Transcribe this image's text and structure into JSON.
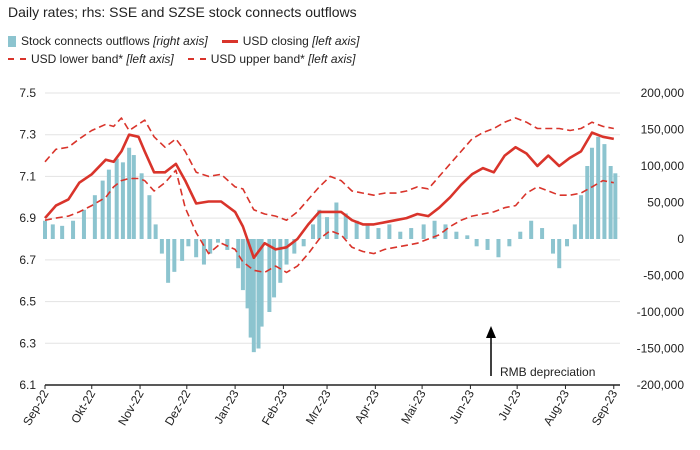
{
  "title": "Daily rates; rhs: SSE and SZSE stock connects outflows",
  "legend": {
    "bars": {
      "label": "Stock connects outflows",
      "note": "[right axis]"
    },
    "close": {
      "label": "USD closing",
      "note": "[left axis]"
    },
    "lower": {
      "label": "USD lower band*",
      "note": "[left axis]"
    },
    "upper": {
      "label": "USD upper band*",
      "note": "[left axis]"
    }
  },
  "annotation": "RMB depreciation",
  "chart_data": {
    "type": "line",
    "x_type": "date",
    "colors": {
      "bars": "#8cc4cf",
      "lines": "#d9342b"
    },
    "x_ticks": [
      {
        "label": "Sep-22",
        "date": "2022-09-01"
      },
      {
        "label": "Okt-22",
        "date": "2022-10-01"
      },
      {
        "label": "Nov-22",
        "date": "2022-11-01"
      },
      {
        "label": "Dez-22",
        "date": "2022-12-01"
      },
      {
        "label": "Jan-23",
        "date": "2023-01-01"
      },
      {
        "label": "Feb-23",
        "date": "2023-02-01"
      },
      {
        "label": "Mrz-23",
        "date": "2023-03-01"
      },
      {
        "label": "Apr-23",
        "date": "2023-04-01"
      },
      {
        "label": "Mai-23",
        "date": "2023-05-01"
      },
      {
        "label": "Jun-23",
        "date": "2023-06-01"
      },
      {
        "label": "Jul-23",
        "date": "2023-07-01"
      },
      {
        "label": "Aug-23",
        "date": "2023-08-01"
      },
      {
        "label": "Sep-23",
        "date": "2023-09-01"
      }
    ],
    "x_range": [
      "2022-09-01",
      "2023-09-05"
    ],
    "left_axis": {
      "min": 6.1,
      "max": 7.5,
      "ticks": [
        7.5,
        7.3,
        7.1,
        6.9,
        6.7,
        6.5,
        6.3,
        6.1
      ]
    },
    "right_axis": {
      "min": -200000,
      "max": 200000,
      "ticks": [
        200000,
        150000,
        100000,
        50000,
        0,
        -50000,
        -100000,
        -150000,
        -200000
      ],
      "tick_labels": [
        "200,000",
        "150,000",
        "100,000",
        "50,000",
        "0",
        "-50,000",
        "-100,000",
        "-150,000",
        "-200,000"
      ]
    },
    "grid": "horizontal",
    "series": [
      {
        "name": "USD closing",
        "axis": "left",
        "style": "solid",
        "points": [
          [
            "2022-09-01",
            6.9
          ],
          [
            "2022-09-08",
            6.96
          ],
          [
            "2022-09-16",
            6.99
          ],
          [
            "2022-09-23",
            7.07
          ],
          [
            "2022-10-01",
            7.11
          ],
          [
            "2022-10-10",
            7.18
          ],
          [
            "2022-10-15",
            7.17
          ],
          [
            "2022-10-20",
            7.22
          ],
          [
            "2022-10-25",
            7.3
          ],
          [
            "2022-10-31",
            7.29
          ],
          [
            "2022-11-04",
            7.22
          ],
          [
            "2022-11-10",
            7.12
          ],
          [
            "2022-11-17",
            7.12
          ],
          [
            "2022-11-24",
            7.16
          ],
          [
            "2022-11-30",
            7.08
          ],
          [
            "2022-12-07",
            6.97
          ],
          [
            "2022-12-15",
            6.98
          ],
          [
            "2022-12-23",
            6.98
          ],
          [
            "2023-01-01",
            6.93
          ],
          [
            "2023-01-06",
            6.86
          ],
          [
            "2023-01-13",
            6.71
          ],
          [
            "2023-01-20",
            6.78
          ],
          [
            "2023-01-27",
            6.75
          ],
          [
            "2023-02-03",
            6.76
          ],
          [
            "2023-02-10",
            6.8
          ],
          [
            "2023-02-17",
            6.87
          ],
          [
            "2023-02-24",
            6.93
          ],
          [
            "2023-03-03",
            6.93
          ],
          [
            "2023-03-10",
            6.93
          ],
          [
            "2023-03-17",
            6.89
          ],
          [
            "2023-03-24",
            6.87
          ],
          [
            "2023-03-31",
            6.87
          ],
          [
            "2023-04-07",
            6.88
          ],
          [
            "2023-04-14",
            6.89
          ],
          [
            "2023-04-21",
            6.9
          ],
          [
            "2023-04-28",
            6.92
          ],
          [
            "2023-05-05",
            6.91
          ],
          [
            "2023-05-12",
            6.95
          ],
          [
            "2023-05-19",
            7.0
          ],
          [
            "2023-05-26",
            7.06
          ],
          [
            "2023-06-02",
            7.11
          ],
          [
            "2023-06-09",
            7.14
          ],
          [
            "2023-06-16",
            7.12
          ],
          [
            "2023-06-23",
            7.2
          ],
          [
            "2023-06-30",
            7.24
          ],
          [
            "2023-07-07",
            7.21
          ],
          [
            "2023-07-14",
            7.15
          ],
          [
            "2023-07-21",
            7.2
          ],
          [
            "2023-07-28",
            7.15
          ],
          [
            "2023-08-04",
            7.19
          ],
          [
            "2023-08-11",
            7.22
          ],
          [
            "2023-08-18",
            7.31
          ],
          [
            "2023-08-25",
            7.29
          ],
          [
            "2023-09-01",
            7.28
          ]
        ]
      },
      {
        "name": "USD lower band*",
        "axis": "left",
        "style": "dashed",
        "points": [
          [
            "2022-09-01",
            7.17
          ],
          [
            "2022-09-08",
            7.23
          ],
          [
            "2022-09-16",
            7.24
          ],
          [
            "2022-09-23",
            7.28
          ],
          [
            "2022-10-01",
            7.32
          ],
          [
            "2022-10-10",
            7.35
          ],
          [
            "2022-10-15",
            7.34
          ],
          [
            "2022-10-20",
            7.38
          ],
          [
            "2022-10-25",
            7.32
          ],
          [
            "2022-10-31",
            7.35
          ],
          [
            "2022-11-04",
            7.37
          ],
          [
            "2022-11-10",
            7.29
          ],
          [
            "2022-11-17",
            7.24
          ],
          [
            "2022-11-24",
            7.28
          ],
          [
            "2022-11-30",
            7.22
          ],
          [
            "2022-12-07",
            7.12
          ],
          [
            "2022-12-15",
            7.1
          ],
          [
            "2022-12-23",
            7.11
          ],
          [
            "2023-01-01",
            7.05
          ],
          [
            "2023-01-06",
            7.04
          ],
          [
            "2023-01-13",
            6.94
          ],
          [
            "2023-01-20",
            6.92
          ],
          [
            "2023-01-27",
            6.91
          ],
          [
            "2023-02-03",
            6.89
          ],
          [
            "2023-02-10",
            6.93
          ],
          [
            "2023-02-17",
            6.99
          ],
          [
            "2023-02-24",
            7.05
          ],
          [
            "2023-03-03",
            7.1
          ],
          [
            "2023-03-10",
            7.08
          ],
          [
            "2023-03-17",
            7.03
          ],
          [
            "2023-03-24",
            7.02
          ],
          [
            "2023-03-31",
            7.01
          ],
          [
            "2023-04-07",
            7.02
          ],
          [
            "2023-04-14",
            7.02
          ],
          [
            "2023-04-21",
            7.03
          ],
          [
            "2023-04-28",
            7.05
          ],
          [
            "2023-05-05",
            7.04
          ],
          [
            "2023-05-12",
            7.1
          ],
          [
            "2023-05-19",
            7.16
          ],
          [
            "2023-05-26",
            7.22
          ],
          [
            "2023-06-02",
            7.28
          ],
          [
            "2023-06-09",
            7.31
          ],
          [
            "2023-06-16",
            7.33
          ],
          [
            "2023-06-23",
            7.36
          ],
          [
            "2023-06-30",
            7.38
          ],
          [
            "2023-07-07",
            7.36
          ],
          [
            "2023-07-14",
            7.33
          ],
          [
            "2023-07-21",
            7.33
          ],
          [
            "2023-07-28",
            7.33
          ],
          [
            "2023-08-04",
            7.32
          ],
          [
            "2023-08-11",
            7.33
          ],
          [
            "2023-08-18",
            7.36
          ],
          [
            "2023-08-25",
            7.34
          ],
          [
            "2023-09-01",
            7.33
          ]
        ]
      },
      {
        "name": "USD upper band*",
        "axis": "left",
        "style": "dashed",
        "points": [
          [
            "2022-09-01",
            6.89
          ],
          [
            "2022-09-08",
            6.9
          ],
          [
            "2022-09-16",
            6.91
          ],
          [
            "2022-09-23",
            6.93
          ],
          [
            "2022-10-01",
            6.96
          ],
          [
            "2022-10-10",
            7.0
          ],
          [
            "2022-10-15",
            7.05
          ],
          [
            "2022-10-20",
            7.08
          ],
          [
            "2022-10-25",
            7.09
          ],
          [
            "2022-10-31",
            7.09
          ],
          [
            "2022-11-04",
            7.08
          ],
          [
            "2022-11-10",
            7.03
          ],
          [
            "2022-11-17",
            7.07
          ],
          [
            "2022-11-24",
            7.13
          ],
          [
            "2022-11-30",
            6.95
          ],
          [
            "2022-12-07",
            6.83
          ],
          [
            "2022-12-15",
            6.73
          ],
          [
            "2022-12-23",
            6.78
          ],
          [
            "2023-01-01",
            6.75
          ],
          [
            "2023-01-06",
            6.69
          ],
          [
            "2023-01-13",
            6.65
          ],
          [
            "2023-01-20",
            6.64
          ],
          [
            "2023-01-27",
            6.67
          ],
          [
            "2023-02-03",
            6.64
          ],
          [
            "2023-02-10",
            6.67
          ],
          [
            "2023-02-17",
            6.73
          ],
          [
            "2023-02-24",
            6.8
          ],
          [
            "2023-03-03",
            6.84
          ],
          [
            "2023-03-10",
            6.82
          ],
          [
            "2023-03-17",
            6.76
          ],
          [
            "2023-03-24",
            6.74
          ],
          [
            "2023-03-31",
            6.73
          ],
          [
            "2023-04-07",
            6.75
          ],
          [
            "2023-04-14",
            6.76
          ],
          [
            "2023-04-21",
            6.77
          ],
          [
            "2023-04-28",
            6.78
          ],
          [
            "2023-05-05",
            6.8
          ],
          [
            "2023-05-12",
            6.82
          ],
          [
            "2023-05-19",
            6.86
          ],
          [
            "2023-05-26",
            6.89
          ],
          [
            "2023-06-02",
            6.91
          ],
          [
            "2023-06-09",
            6.92
          ],
          [
            "2023-06-16",
            6.93
          ],
          [
            "2023-06-23",
            6.95
          ],
          [
            "2023-06-30",
            6.96
          ],
          [
            "2023-07-07",
            7.02
          ],
          [
            "2023-07-14",
            7.05
          ],
          [
            "2023-07-21",
            7.03
          ],
          [
            "2023-07-28",
            7.01
          ],
          [
            "2023-08-04",
            7.01
          ],
          [
            "2023-08-11",
            7.02
          ],
          [
            "2023-08-18",
            7.05
          ],
          [
            "2023-08-25",
            7.08
          ],
          [
            "2023-09-01",
            7.07
          ]
        ]
      },
      {
        "name": "Stock connects outflows",
        "axis": "right",
        "style": "bar",
        "points": [
          [
            "2022-09-01",
            25000
          ],
          [
            "2022-09-06",
            20000
          ],
          [
            "2022-09-12",
            18000
          ],
          [
            "2022-09-19",
            25000
          ],
          [
            "2022-09-26",
            40000
          ],
          [
            "2022-10-03",
            60000
          ],
          [
            "2022-10-08",
            80000
          ],
          [
            "2022-10-12",
            95000
          ],
          [
            "2022-10-17",
            110000
          ],
          [
            "2022-10-21",
            105000
          ],
          [
            "2022-10-25",
            125000
          ],
          [
            "2022-10-28",
            115000
          ],
          [
            "2022-11-02",
            90000
          ],
          [
            "2022-11-07",
            60000
          ],
          [
            "2022-11-11",
            20000
          ],
          [
            "2022-11-15",
            -20000
          ],
          [
            "2022-11-19",
            -60000
          ],
          [
            "2022-11-23",
            -45000
          ],
          [
            "2022-11-28",
            -30000
          ],
          [
            "2022-12-02",
            -10000
          ],
          [
            "2022-12-07",
            -25000
          ],
          [
            "2022-12-12",
            -35000
          ],
          [
            "2022-12-16",
            -20000
          ],
          [
            "2022-12-21",
            -5000
          ],
          [
            "2022-12-27",
            -15000
          ],
          [
            "2023-01-03",
            -40000
          ],
          [
            "2023-01-06",
            -70000
          ],
          [
            "2023-01-09",
            -95000
          ],
          [
            "2023-01-11",
            -135000
          ],
          [
            "2023-01-13",
            -155000
          ],
          [
            "2023-01-16",
            -150000
          ],
          [
            "2023-01-18",
            -120000
          ],
          [
            "2023-01-23",
            -100000
          ],
          [
            "2023-01-26",
            -80000
          ],
          [
            "2023-01-30",
            -60000
          ],
          [
            "2023-02-03",
            -35000
          ],
          [
            "2023-02-08",
            -20000
          ],
          [
            "2023-02-14",
            -10000
          ],
          [
            "2023-02-20",
            20000
          ],
          [
            "2023-02-24",
            40000
          ],
          [
            "2023-03-01",
            30000
          ],
          [
            "2023-03-07",
            50000
          ],
          [
            "2023-03-13",
            35000
          ],
          [
            "2023-03-20",
            25000
          ],
          [
            "2023-03-27",
            20000
          ],
          [
            "2023-04-03",
            15000
          ],
          [
            "2023-04-10",
            20000
          ],
          [
            "2023-04-17",
            10000
          ],
          [
            "2023-04-24",
            15000
          ],
          [
            "2023-05-02",
            20000
          ],
          [
            "2023-05-09",
            25000
          ],
          [
            "2023-05-16",
            20000
          ],
          [
            "2023-05-23",
            10000
          ],
          [
            "2023-05-30",
            5000
          ],
          [
            "2023-06-05",
            -10000
          ],
          [
            "2023-06-12",
            -15000
          ],
          [
            "2023-06-19",
            -25000
          ],
          [
            "2023-06-26",
            -10000
          ],
          [
            "2023-07-03",
            10000
          ],
          [
            "2023-07-10",
            25000
          ],
          [
            "2023-07-17",
            15000
          ],
          [
            "2023-07-24",
            -20000
          ],
          [
            "2023-07-28",
            -40000
          ],
          [
            "2023-08-02",
            -10000
          ],
          [
            "2023-08-07",
            20000
          ],
          [
            "2023-08-11",
            60000
          ],
          [
            "2023-08-15",
            100000
          ],
          [
            "2023-08-18",
            125000
          ],
          [
            "2023-08-22",
            140000
          ],
          [
            "2023-08-26",
            130000
          ],
          [
            "2023-08-30",
            100000
          ],
          [
            "2023-09-02",
            90000
          ]
        ]
      }
    ]
  }
}
